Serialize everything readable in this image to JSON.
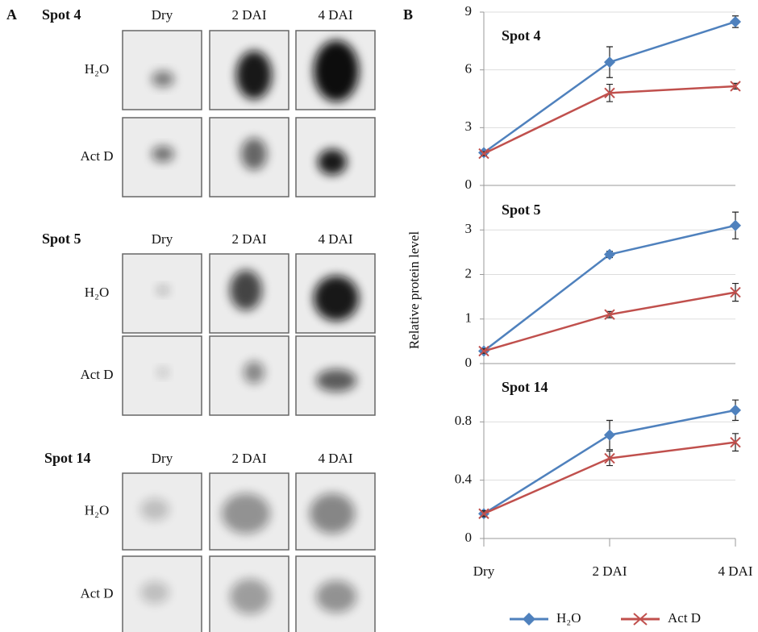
{
  "panel_a": {
    "label": "A",
    "blocks": [
      {
        "title": "Spot 4",
        "columns": [
          "Dry",
          "2 DAI",
          "4 DAI"
        ],
        "rows": [
          "H₂O",
          "Act D"
        ]
      },
      {
        "title": "Spot 5",
        "columns": [
          "Dry",
          "2 DAI",
          "4 DAI"
        ],
        "rows": [
          "H₂O",
          "Act D"
        ]
      },
      {
        "title": "Spot 14",
        "columns": [
          "Dry",
          "2 DAI",
          "4 DAI"
        ],
        "rows": [
          "H₂O",
          "Act D"
        ]
      }
    ]
  },
  "panel_b": {
    "label": "B",
    "y_axis_label": "Relative protein level"
  },
  "chart_data": [
    {
      "type": "line",
      "title": "Spot 4",
      "categories": [
        "Dry",
        "2 DAI",
        "4 DAI"
      ],
      "ylim": [
        0,
        9
      ],
      "yticks": [
        0,
        3,
        6,
        9
      ],
      "grid": true,
      "series": [
        {
          "name": "H₂O",
          "color": "#4f81bd",
          "marker": "diamond",
          "values": [
            1.7,
            6.4,
            8.5
          ],
          "errors": [
            0.1,
            0.8,
            0.3
          ]
        },
        {
          "name": "Act D",
          "color": "#c0504d",
          "marker": "x",
          "values": [
            1.65,
            4.8,
            5.15
          ],
          "errors": [
            0.1,
            0.45,
            0.15
          ]
        }
      ]
    },
    {
      "type": "line",
      "title": "Spot 5",
      "categories": [
        "Dry",
        "2 DAI",
        "4 DAI"
      ],
      "ylim": [
        0,
        4
      ],
      "yticks": [
        0,
        1,
        2,
        3
      ],
      "grid": true,
      "series": [
        {
          "name": "H₂O",
          "color": "#4f81bd",
          "marker": "diamond",
          "values": [
            0.28,
            2.45,
            3.1
          ],
          "errors": [
            0.05,
            0.07,
            0.3
          ]
        },
        {
          "name": "Act D",
          "color": "#c0504d",
          "marker": "x",
          "values": [
            0.28,
            1.1,
            1.6
          ],
          "errors": [
            0.05,
            0.07,
            0.2
          ]
        }
      ]
    },
    {
      "type": "line",
      "title": "Spot 14",
      "categories": [
        "Dry",
        "2 DAI",
        "4 DAI"
      ],
      "ylim": [
        0,
        1.2
      ],
      "yticks": [
        0,
        0.4,
        0.8
      ],
      "grid": true,
      "series": [
        {
          "name": "H₂O",
          "color": "#4f81bd",
          "marker": "diamond",
          "values": [
            0.17,
            0.71,
            0.88
          ],
          "errors": [
            0.02,
            0.1,
            0.07
          ]
        },
        {
          "name": "Act D",
          "color": "#c0504d",
          "marker": "x",
          "values": [
            0.17,
            0.55,
            0.66
          ],
          "errors": [
            0.02,
            0.05,
            0.06
          ]
        }
      ]
    }
  ]
}
